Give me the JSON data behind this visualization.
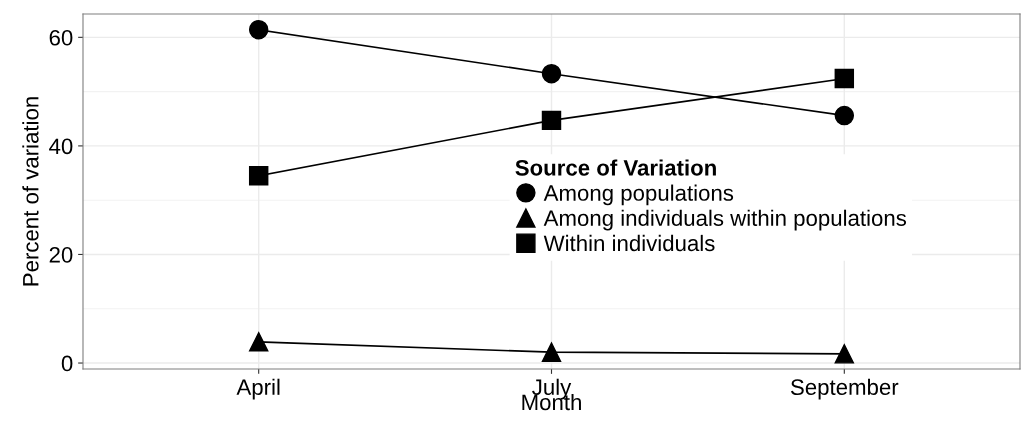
{
  "chart_data": {
    "type": "line",
    "xlabel": "Month",
    "ylabel": "Percent of variation",
    "legend_title": "Source of Variation",
    "categories": [
      "April",
      "July",
      "September"
    ],
    "series": [
      {
        "name": "Among populations",
        "color": "#000000",
        "marker": "circle",
        "values": [
          61.4,
          53.3,
          45.6
        ]
      },
      {
        "name": "Among individuals within populations",
        "color": "#000000",
        "marker": "triangle",
        "values": [
          3.9,
          2.0,
          1.7
        ]
      },
      {
        "name": "Within individuals",
        "color": "#000000",
        "marker": "square",
        "values": [
          34.5,
          44.7,
          52.4
        ]
      }
    ],
    "ylim": [
      -1.1,
      64.3
    ],
    "yticks": [
      0,
      20,
      40,
      60
    ],
    "grid": true,
    "legend": "center",
    "line_style": "solid"
  }
}
